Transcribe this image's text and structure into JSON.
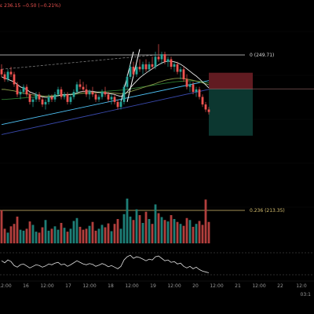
{
  "header": {
    "price_suffix": "ε",
    "price": "236.15",
    "change": "−0.50 (−0.21%)"
  },
  "fib_levels": [
    {
      "label": "0 (249.71)",
      "price": 249.71,
      "color": "#d8d8d8"
    },
    {
      "label": "0.236 (213.35)",
      "price": 213.35,
      "color": "#d8c070"
    }
  ],
  "x_axis": {
    "ticks": [
      "12:00",
      "16",
      "12:00",
      "17",
      "12:00",
      "18",
      "12:00",
      "19",
      "12:00",
      "20",
      "12:00",
      "21",
      "12:00",
      "22",
      "12:0"
    ]
  },
  "bottom_right_time": "03:1",
  "colors": {
    "bg": "#000000",
    "up": "#26a69a",
    "down": "#ef5350",
    "ma_white": "#e8e8e8",
    "ma_olive": "#8a9a4a",
    "ma_green": "#2e7d32",
    "ma_blue": "#4fc3f7",
    "trend_navy": "#3949ab",
    "fib_main": "#d8d8d8",
    "fib_236": "#d8c070",
    "oscillator": "#e0e0e0",
    "risk_zone": "#6b1e25",
    "reward_zone": "#0d3a33"
  },
  "chart_data": {
    "type": "candlestick",
    "price_axis_visible": false,
    "candles": [
      [
        244,
        246,
        241,
        242
      ],
      [
        242,
        243,
        239,
        240
      ],
      [
        240,
        244,
        239,
        243
      ],
      [
        243,
        245,
        241,
        242
      ],
      [
        242,
        243,
        237,
        238
      ],
      [
        238,
        239,
        233,
        234
      ],
      [
        234,
        236,
        232,
        235
      ],
      [
        235,
        238,
        234,
        237
      ],
      [
        237,
        238,
        233,
        234
      ],
      [
        234,
        235,
        230,
        231
      ],
      [
        231,
        233,
        229,
        232
      ],
      [
        232,
        235,
        231,
        234
      ],
      [
        234,
        235,
        231,
        232
      ],
      [
        232,
        233,
        229,
        230
      ],
      [
        230,
        232,
        228,
        231
      ],
      [
        231,
        234,
        230,
        233
      ],
      [
        233,
        234,
        231,
        232
      ],
      [
        232,
        235,
        231,
        234
      ],
      [
        234,
        237,
        233,
        236
      ],
      [
        236,
        237,
        232,
        233
      ],
      [
        233,
        235,
        232,
        234
      ],
      [
        234,
        235,
        230,
        231
      ],
      [
        231,
        234,
        230,
        233
      ],
      [
        233,
        236,
        232,
        235
      ],
      [
        235,
        239,
        234,
        238
      ],
      [
        238,
        240,
        236,
        237
      ],
      [
        237,
        239,
        235,
        236
      ],
      [
        236,
        238,
        233,
        234
      ],
      [
        234,
        236,
        232,
        235
      ],
      [
        235,
        237,
        233,
        234
      ],
      [
        234,
        235,
        231,
        232
      ],
      [
        232,
        234,
        231,
        233
      ],
      [
        233,
        236,
        232,
        235
      ],
      [
        235,
        237,
        233,
        234
      ],
      [
        234,
        235,
        231,
        232
      ],
      [
        232,
        234,
        230,
        233
      ],
      [
        233,
        234,
        230,
        231
      ],
      [
        231,
        232,
        228,
        229
      ],
      [
        229,
        232,
        228,
        231
      ],
      [
        231,
        238,
        230,
        237
      ],
      [
        237,
        242,
        236,
        241
      ],
      [
        241,
        246,
        240,
        245
      ],
      [
        245,
        247,
        241,
        242
      ],
      [
        242,
        246,
        241,
        245
      ],
      [
        245,
        248,
        243,
        244
      ],
      [
        244,
        247,
        242,
        246
      ],
      [
        246,
        248,
        243,
        244
      ],
      [
        244,
        247,
        243,
        246
      ],
      [
        246,
        249,
        244,
        245
      ],
      [
        245,
        251,
        244,
        249
      ],
      [
        249,
        254,
        247,
        248
      ],
      [
        248,
        251,
        246,
        250
      ],
      [
        250,
        251,
        246,
        247
      ],
      [
        247,
        249,
        245,
        248
      ],
      [
        248,
        249,
        244,
        245
      ],
      [
        245,
        247,
        243,
        246
      ],
      [
        246,
        247,
        242,
        243
      ],
      [
        243,
        245,
        240,
        244
      ],
      [
        244,
        245,
        239,
        240
      ],
      [
        240,
        242,
        236,
        237
      ],
      [
        237,
        239,
        235,
        238
      ],
      [
        238,
        239,
        234,
        235
      ],
      [
        235,
        237,
        233,
        236
      ],
      [
        236,
        237,
        232,
        233
      ],
      [
        233,
        234,
        229,
        230
      ],
      [
        230,
        231,
        227,
        228
      ],
      [
        228,
        229,
        226,
        227
      ]
    ],
    "volumes": [
      68,
      30,
      22,
      35,
      40,
      55,
      28,
      26,
      30,
      45,
      38,
      24,
      22,
      33,
      48,
      26,
      30,
      35,
      28,
      42,
      32,
      24,
      30,
      46,
      52,
      34,
      28,
      30,
      36,
      44,
      26,
      30,
      38,
      33,
      41,
      25,
      40,
      50,
      30,
      60,
      92,
      55,
      48,
      70,
      58,
      42,
      65,
      50,
      40,
      80,
      62,
      54,
      48,
      45,
      58,
      50,
      44,
      40,
      36,
      52,
      48,
      34,
      40,
      46,
      38,
      90,
      44
    ],
    "oscillator": [
      60,
      55,
      62,
      58,
      48,
      44,
      50,
      52,
      47,
      42,
      46,
      50,
      48,
      44,
      47,
      52,
      50,
      54,
      56,
      50,
      52,
      46,
      50,
      55,
      60,
      56,
      52,
      50,
      53,
      51,
      46,
      49,
      53,
      50,
      45,
      48,
      44,
      40,
      46,
      62,
      70,
      74,
      66,
      70,
      68,
      64,
      60,
      64,
      62,
      70,
      72,
      66,
      60,
      62,
      56,
      58,
      52,
      54,
      46,
      42,
      46,
      40,
      44,
      38,
      34,
      32,
      30
    ],
    "ma_white": [
      241,
      240.5,
      240,
      239.5,
      239,
      238,
      237,
      236.5,
      236,
      235,
      234.5,
      234,
      233.5,
      233,
      232.8,
      232.8,
      233,
      233.2,
      233.5,
      233.8,
      234,
      234,
      234,
      234.2,
      234.6,
      235,
      235.2,
      235.3,
      235.3,
      235.2,
      235,
      234.8,
      234.7,
      234.6,
      234.4,
      234.2,
      234,
      233.5,
      233.2,
      233.8,
      235,
      236.6,
      238,
      239.3,
      240.6,
      241.6,
      242.5,
      243.4,
      244.2,
      245,
      245.8,
      246.5,
      247,
      247.2,
      247.2,
      247,
      246.6,
      246,
      245.2,
      244.2,
      243.2,
      242.2,
      241.3,
      240.2,
      239,
      237.8,
      236.6
    ],
    "ma_olive": [
      236,
      236,
      235.8,
      235.6,
      235.4,
      235.1,
      234.8,
      234.5,
      234.3,
      234,
      233.8,
      233.6,
      233.5,
      233.4,
      233.3,
      233.3,
      233.3,
      233.4,
      233.5,
      233.6,
      233.7,
      233.8,
      233.9,
      234,
      234.2,
      234.4,
      234.5,
      234.6,
      234.7,
      234.7,
      234.7,
      234.7,
      234.7,
      234.7,
      234.6,
      234.6,
      234.5,
      234.4,
      234.3,
      234.4,
      234.7,
      235.1,
      235.5,
      235.9,
      236.3,
      236.7,
      237.1,
      237.5,
      237.9,
      238.3,
      238.8,
      239.2,
      239.6,
      239.9,
      240.1,
      240.3,
      240.4,
      240.4,
      240.3,
      240.1,
      239.9,
      239.6,
      239.3,
      239,
      238.6,
      238.2,
      237.8
    ],
    "ma_green": [
      232,
      232,
      232.1,
      232.2,
      232.3,
      232.4,
      232.5,
      232.6,
      232.7,
      232.8,
      232.9,
      233,
      233.1,
      233.2,
      233.3,
      233.4,
      233.5,
      233.6,
      233.7,
      233.8,
      233.9,
      234,
      234.1,
      234.2,
      234.3,
      234.4,
      234.5,
      234.6,
      234.7,
      234.8,
      234.9,
      235,
      235.1,
      235.2,
      235.3,
      235.4,
      235.5,
      235.6,
      235.7,
      235.8,
      236,
      236.2,
      236.4,
      236.6,
      236.8,
      237,
      237.2,
      237.4,
      237.6,
      237.8,
      238,
      238.2,
      238.4,
      238.6,
      238.8,
      239,
      239.1,
      239.2,
      239.3,
      239.4,
      239.4,
      239.4,
      239.3,
      239.2,
      239,
      238.8,
      238.6
    ],
    "trend_blue": [
      [
        0,
        222
      ],
      [
        66,
        239.5
      ]
    ],
    "trend_navy": [
      [
        0,
        218
      ],
      [
        66,
        236
      ]
    ],
    "trend_dashed": [
      [
        0,
        244
      ],
      [
        49,
        249.71
      ]
    ],
    "impulse_lines": [
      [
        [
          38,
          231
        ],
        [
          42,
          251
        ]
      ],
      [
        [
          40,
          231
        ],
        [
          44,
          252
        ]
      ]
    ],
    "fib_0": 249.71,
    "fib_0236": 213.35,
    "position": {
      "start": 66,
      "end": 80,
      "entry": 236.2,
      "stop": 239.5,
      "target": 228.2
    }
  }
}
